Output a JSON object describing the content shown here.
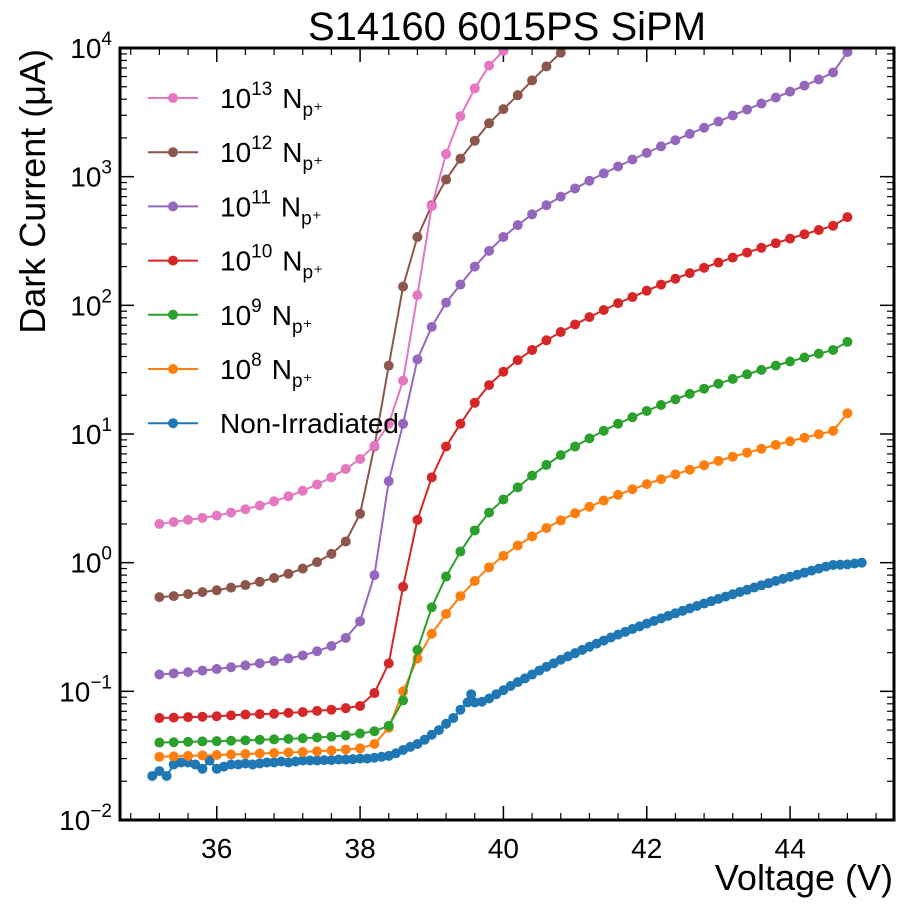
{
  "chart_data": {
    "type": "line",
    "title": "S14160 6015PS SiPM",
    "xlabel": "Voltage (V)",
    "ylabel": "Dark Current (μA)",
    "x_scale": "linear",
    "y_scale": "log",
    "xlim": [
      34.65,
      45.45
    ],
    "ylim": [
      0.01,
      10000
    ],
    "x_ticks": [
      36,
      38,
      40,
      42,
      44
    ],
    "y_ticks": [
      {
        "base": "10",
        "exp": "−2",
        "value": 0.01
      },
      {
        "base": "10",
        "exp": "−1",
        "value": 0.1
      },
      {
        "base": "10",
        "exp": "0",
        "value": 1
      },
      {
        "base": "10",
        "exp": "1",
        "value": 10
      },
      {
        "base": "10",
        "exp": "2",
        "value": 100
      },
      {
        "base": "10",
        "exp": "3",
        "value": 1000
      },
      {
        "base": "10",
        "exp": "4",
        "value": 10000
      }
    ],
    "grid": false,
    "legend_position": "top-left",
    "series": [
      {
        "name": "10¹³ Np⁺",
        "legend": {
          "base": "10",
          "exp": "13",
          "main": "N",
          "sub": "p⁺"
        },
        "color": "#e377c2",
        "x": [
          35.2,
          35.4,
          35.6,
          35.8,
          36.0,
          36.2,
          36.4,
          36.6,
          36.8,
          37.0,
          37.2,
          37.4,
          37.6,
          37.8,
          38.0,
          38.2,
          38.4,
          38.6,
          38.8,
          39.0,
          39.2,
          39.4,
          39.6,
          39.8,
          40.0
        ],
        "y": [
          2.0,
          2.07,
          2.15,
          2.23,
          2.32,
          2.45,
          2.6,
          2.78,
          3.0,
          3.28,
          3.62,
          4.05,
          4.6,
          5.35,
          6.4,
          8.1,
          12,
          26,
          120,
          590,
          1500,
          2950,
          4850,
          7300,
          9500
        ]
      },
      {
        "name": "10¹² Np⁺",
        "legend": {
          "base": "10",
          "exp": "12",
          "main": "N",
          "sub": "p⁺"
        },
        "color": "#8c564b",
        "x": [
          35.2,
          35.4,
          35.6,
          35.8,
          36.0,
          36.2,
          36.4,
          36.6,
          36.8,
          37.0,
          37.2,
          37.4,
          37.6,
          37.8,
          38.0,
          38.2,
          38.4,
          38.6,
          38.8,
          39.0,
          39.2,
          39.4,
          39.6,
          39.8,
          40.0,
          40.2,
          40.4,
          40.6,
          40.8,
          41.0
        ],
        "y": [
          0.54,
          0.55,
          0.57,
          0.59,
          0.61,
          0.64,
          0.67,
          0.71,
          0.76,
          0.82,
          0.9,
          1.01,
          1.17,
          1.46,
          2.4,
          8.0,
          34,
          140,
          340,
          600,
          950,
          1380,
          1900,
          2600,
          3350,
          4300,
          5600,
          7200,
          9200,
          11500
        ]
      },
      {
        "name": "10¹¹ Np⁺",
        "legend": {
          "base": "10",
          "exp": "11",
          "main": "N",
          "sub": "p⁺"
        },
        "color": "#9467bd",
        "x": [
          35.2,
          35.4,
          35.6,
          35.8,
          36.0,
          36.2,
          36.4,
          36.6,
          36.8,
          37.0,
          37.2,
          37.4,
          37.6,
          37.8,
          38.0,
          38.2,
          38.4,
          38.6,
          38.8,
          39.0,
          39.2,
          39.4,
          39.6,
          39.8,
          40.0,
          40.2,
          40.4,
          40.6,
          40.8,
          41.0,
          41.2,
          41.4,
          41.6,
          41.8,
          42.0,
          42.2,
          42.4,
          42.6,
          42.8,
          43.0,
          43.2,
          43.4,
          43.6,
          43.8,
          44.0,
          44.2,
          44.4,
          44.6,
          44.8
        ],
        "y": [
          0.135,
          0.138,
          0.141,
          0.145,
          0.149,
          0.154,
          0.159,
          0.165,
          0.172,
          0.18,
          0.19,
          0.205,
          0.225,
          0.26,
          0.35,
          0.8,
          4.3,
          12,
          38,
          68,
          105,
          145,
          200,
          265,
          340,
          420,
          510,
          600,
          700,
          810,
          930,
          1060,
          1200,
          1360,
          1530,
          1720,
          1920,
          2150,
          2400,
          2680,
          2990,
          3330,
          3700,
          4120,
          4580,
          5100,
          5700,
          6450,
          9300
        ]
      },
      {
        "name": "10¹⁰ Np⁺",
        "legend": {
          "base": "10",
          "exp": "10",
          "main": "N",
          "sub": "p⁺"
        },
        "color": "#d62728",
        "x": [
          35.2,
          35.4,
          35.6,
          35.8,
          36.0,
          36.2,
          36.4,
          36.6,
          36.8,
          37.0,
          37.2,
          37.4,
          37.6,
          37.8,
          38.0,
          38.2,
          38.4,
          38.6,
          38.8,
          39.0,
          39.2,
          39.4,
          39.6,
          39.8,
          40.0,
          40.2,
          40.4,
          40.6,
          40.8,
          41.0,
          41.2,
          41.4,
          41.6,
          41.8,
          42.0,
          42.2,
          42.4,
          42.6,
          42.8,
          43.0,
          43.2,
          43.4,
          43.6,
          43.8,
          44.0,
          44.2,
          44.4,
          44.6,
          44.8
        ],
        "y": [
          0.062,
          0.0625,
          0.063,
          0.0635,
          0.064,
          0.065,
          0.066,
          0.0665,
          0.067,
          0.068,
          0.069,
          0.0705,
          0.072,
          0.074,
          0.077,
          0.097,
          0.165,
          0.65,
          2.15,
          4.6,
          8.0,
          12,
          17.5,
          24,
          30.5,
          37.5,
          45,
          53.5,
          62,
          71,
          81,
          92,
          104,
          116,
          130,
          145,
          161,
          178,
          196,
          215,
          235,
          257,
          280,
          304,
          330,
          357,
          385,
          415,
          485
        ]
      },
      {
        "name": "10⁹ Np⁺",
        "legend": {
          "base": "10",
          "exp": "9",
          "main": "N",
          "sub": "p⁺"
        },
        "color": "#2ca02c",
        "x": [
          35.2,
          35.4,
          35.6,
          35.8,
          36.0,
          36.2,
          36.4,
          36.6,
          36.8,
          37.0,
          37.2,
          37.4,
          37.6,
          37.8,
          38.0,
          38.2,
          38.4,
          38.6,
          38.8,
          39.0,
          39.2,
          39.4,
          39.6,
          39.8,
          40.0,
          40.2,
          40.4,
          40.6,
          40.8,
          41.0,
          41.2,
          41.4,
          41.6,
          41.8,
          42.0,
          42.2,
          42.4,
          42.6,
          42.8,
          43.0,
          43.2,
          43.4,
          43.6,
          43.8,
          44.0,
          44.2,
          44.4,
          44.6,
          44.8
        ],
        "y": [
          0.04,
          0.0402,
          0.0405,
          0.0408,
          0.041,
          0.0413,
          0.0416,
          0.042,
          0.0423,
          0.0427,
          0.0432,
          0.0438,
          0.0445,
          0.0455,
          0.047,
          0.049,
          0.054,
          0.085,
          0.21,
          0.45,
          0.78,
          1.22,
          1.78,
          2.45,
          3.1,
          3.85,
          4.75,
          5.75,
          6.85,
          8.0,
          9.25,
          10.6,
          12.0,
          13.5,
          15.1,
          16.8,
          18.6,
          20.5,
          22.5,
          24.6,
          26.8,
          29.1,
          31.5,
          34.0,
          36.6,
          39.3,
          42.1,
          45.0,
          52
        ]
      },
      {
        "name": "10⁸ Np⁺",
        "legend": {
          "base": "10",
          "exp": "8",
          "main": "N",
          "sub": "p⁺"
        },
        "color": "#ff7f0e",
        "x": [
          35.2,
          35.4,
          35.6,
          35.8,
          36.0,
          36.2,
          36.4,
          36.6,
          36.8,
          37.0,
          37.2,
          37.4,
          37.6,
          37.8,
          38.0,
          38.2,
          38.4,
          38.6,
          38.8,
          39.0,
          39.2,
          39.4,
          39.6,
          39.8,
          40.0,
          40.2,
          40.4,
          40.6,
          40.8,
          41.0,
          41.2,
          41.4,
          41.6,
          41.8,
          42.0,
          42.2,
          42.4,
          42.6,
          42.8,
          43.0,
          43.2,
          43.4,
          43.6,
          43.8,
          44.0,
          44.2,
          44.4,
          44.6,
          44.8
        ],
        "y": [
          0.031,
          0.0312,
          0.0315,
          0.0318,
          0.032,
          0.0323,
          0.0326,
          0.0329,
          0.0332,
          0.0335,
          0.0338,
          0.0342,
          0.0347,
          0.0353,
          0.036,
          0.039,
          0.052,
          0.1,
          0.18,
          0.28,
          0.4,
          0.55,
          0.72,
          0.92,
          1.13,
          1.36,
          1.6,
          1.86,
          2.13,
          2.42,
          2.72,
          3.04,
          3.37,
          3.72,
          4.08,
          4.46,
          4.86,
          5.28,
          5.72,
          6.18,
          6.66,
          7.16,
          7.68,
          8.22,
          8.78,
          9.36,
          9.96,
          10.58,
          14.5
        ]
      },
      {
        "name": "Non-Irradiated",
        "legend": {
          "text": "Non-Irradiated"
        },
        "color": "#1f77b4",
        "x": [
          35.1,
          35.2,
          35.3,
          35.4,
          35.5,
          35.6,
          35.7,
          35.8,
          35.9,
          36.0,
          36.1,
          36.2,
          36.3,
          36.4,
          36.5,
          36.6,
          36.7,
          36.8,
          36.9,
          37.0,
          37.1,
          37.2,
          37.3,
          37.4,
          37.5,
          37.6,
          37.7,
          37.8,
          37.9,
          38.0,
          38.1,
          38.2,
          38.3,
          38.4,
          38.5,
          38.6,
          38.7,
          38.8,
          38.9,
          39.0,
          39.1,
          39.2,
          39.3,
          39.4,
          39.5,
          39.55,
          39.6,
          39.7,
          39.8,
          39.9,
          40.0,
          40.1,
          40.2,
          40.3,
          40.4,
          40.5,
          40.6,
          40.7,
          40.8,
          40.9,
          41.0,
          41.1,
          41.2,
          41.3,
          41.4,
          41.5,
          41.6,
          41.7,
          41.8,
          41.9,
          42.0,
          42.1,
          42.2,
          42.3,
          42.4,
          42.5,
          42.6,
          42.7,
          42.8,
          42.9,
          43.0,
          43.1,
          43.2,
          43.3,
          43.4,
          43.5,
          43.6,
          43.7,
          43.8,
          43.9,
          44.0,
          44.1,
          44.2,
          44.3,
          44.4,
          44.5,
          44.6,
          44.7,
          44.8,
          44.9,
          45.0
        ],
        "y": [
          0.022,
          0.024,
          0.022,
          0.027,
          0.028,
          0.028,
          0.027,
          0.025,
          0.029,
          0.025,
          0.026,
          0.027,
          0.027,
          0.0275,
          0.027,
          0.0275,
          0.028,
          0.028,
          0.0285,
          0.028,
          0.0285,
          0.029,
          0.029,
          0.029,
          0.0292,
          0.0292,
          0.0295,
          0.0295,
          0.0297,
          0.03,
          0.03,
          0.0305,
          0.031,
          0.0315,
          0.033,
          0.035,
          0.037,
          0.039,
          0.042,
          0.046,
          0.05,
          0.056,
          0.062,
          0.072,
          0.082,
          0.095,
          0.082,
          0.083,
          0.088,
          0.095,
          0.102,
          0.11,
          0.118,
          0.126,
          0.135,
          0.145,
          0.155,
          0.165,
          0.176,
          0.187,
          0.198,
          0.21,
          0.222,
          0.235,
          0.248,
          0.262,
          0.276,
          0.29,
          0.305,
          0.32,
          0.336,
          0.352,
          0.369,
          0.386,
          0.404,
          0.422,
          0.441,
          0.461,
          0.481,
          0.502,
          0.523,
          0.545,
          0.568,
          0.592,
          0.616,
          0.641,
          0.667,
          0.693,
          0.72,
          0.748,
          0.777,
          0.806,
          0.836,
          0.867,
          0.899,
          0.932,
          0.96,
          0.965,
          0.97,
          0.985,
          1.0
        ]
      }
    ]
  }
}
